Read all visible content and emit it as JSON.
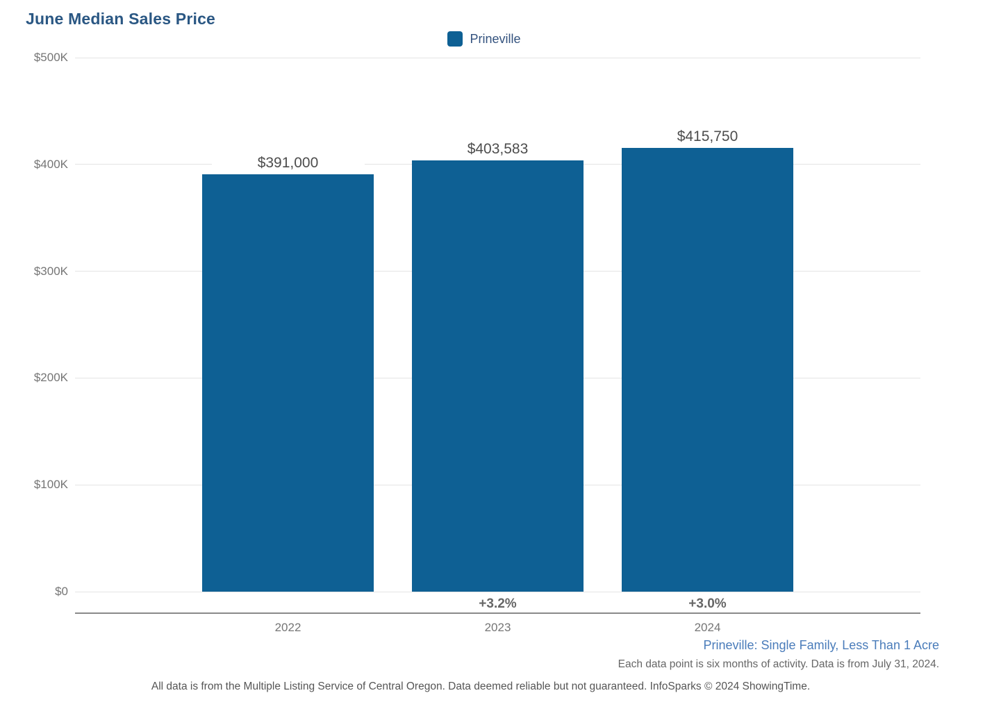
{
  "chart": {
    "title": "June Median Sales Price",
    "legend": {
      "label": "Prineville",
      "color": "#0e6094"
    },
    "subtitle": "Prineville: Single Family, Less Than 1 Acre",
    "data_note": "Each data point is six months of activity. Data is from July 31, 2024.",
    "footer": "All data is from the Multiple Listing Service of Central Oregon. Data deemed reliable but not guaranteed. InfoSparks © 2024 ShowingTime."
  },
  "chart_data": {
    "type": "bar",
    "title": "June Median Sales Price",
    "categories": [
      "2022",
      "2023",
      "2024"
    ],
    "series": [
      {
        "name": "Prineville",
        "values": [
          391000,
          403583,
          415750
        ]
      }
    ],
    "value_labels": [
      "$391,000",
      "$403,583",
      "$415,750"
    ],
    "pct_change_labels": [
      "",
      "+3.2%",
      "+3.0%"
    ],
    "y_ticks": [
      "$0",
      "$100K",
      "$200K",
      "$300K",
      "$400K",
      "$500K"
    ],
    "y_tick_values": [
      0,
      100000,
      200000,
      300000,
      400000,
      500000
    ],
    "ylim": [
      0,
      500000
    ],
    "xlabel": "",
    "ylabel": "",
    "bar_color": "#0e6094",
    "grid": true,
    "legend_position": "top-center"
  },
  "colors": {
    "title": "#2a5783",
    "bar": "#0e6094",
    "subtitle_link": "#4a7cba",
    "gridline": "#e4e4e4",
    "axis_line": "#8a8a8a",
    "value_label": "#4d4d4d",
    "pct_label": "#666666",
    "tick_label": "#757575"
  }
}
